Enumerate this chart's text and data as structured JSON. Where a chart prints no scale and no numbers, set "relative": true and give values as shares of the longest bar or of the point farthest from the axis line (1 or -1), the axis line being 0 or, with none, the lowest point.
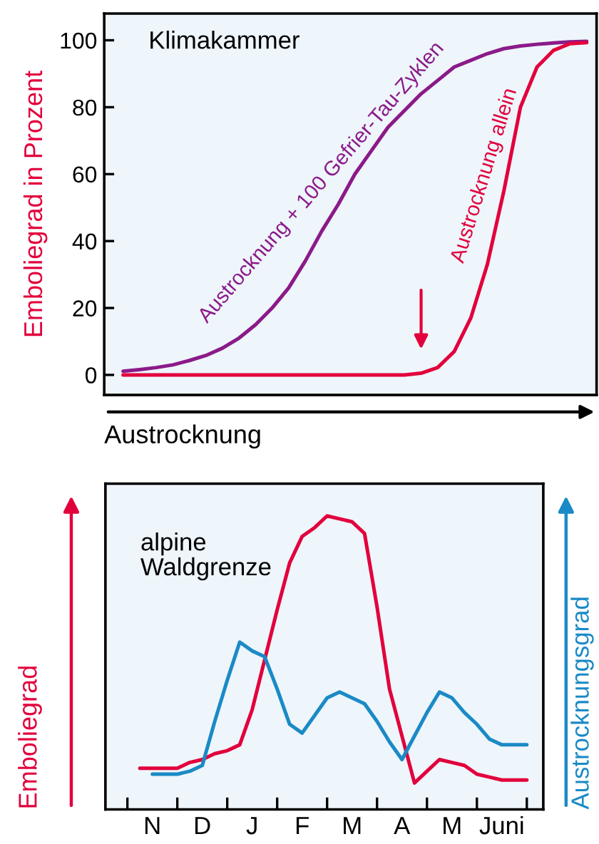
{
  "chart_data": [
    {
      "type": "line",
      "ylabel": "Emboliegrad in Prozent",
      "xlabel": "Austrocknung",
      "annotations": [
        "Klimakammer"
      ],
      "categories": [
        null,
        null,
        null,
        null,
        null,
        null,
        null,
        null,
        null,
        null,
        null,
        null,
        null,
        null,
        null,
        null,
        null,
        null,
        null,
        null,
        null,
        null,
        null,
        null,
        null,
        null,
        null,
        null,
        null
      ],
      "series": [
        {
          "name": "Austrocknung + 100 Gefrier-Tau-Zyklen",
          "color": "#8b1a89",
          "values": [
            1.1,
            1.6,
            2.2,
            3.0,
            4.3,
            5.8,
            8.0,
            11,
            15,
            20,
            26,
            34,
            43,
            51,
            60,
            67,
            74,
            79,
            84,
            88,
            92,
            94,
            96,
            97.5,
            98.3,
            98.8,
            99.2,
            99.5,
            99.7
          ]
        },
        {
          "name": "Austrocknung allein",
          "color": "#e2003c",
          "values": [
            0,
            0,
            0,
            0,
            0,
            0,
            0,
            0,
            0,
            0,
            0,
            0,
            0,
            0,
            0,
            0,
            0,
            0,
            0.5,
            2.2,
            7,
            17,
            33,
            55,
            80,
            92,
            97,
            99,
            99.3
          ]
        }
      ],
      "ylim": [
        -6,
        108
      ],
      "yticks": [
        0,
        20,
        40,
        60,
        80,
        100
      ],
      "tick_labels": "y",
      "legend": false,
      "grid": false
    },
    {
      "type": "line",
      "relative": true,
      "ylabel": "Emboliegrad",
      "y2label": "Austrocknungsgrad",
      "annotations": [
        "alpine\nWaldgrenze"
      ],
      "series": [
        {
          "color": "#e2003c",
          "values": [
            0.14,
            0.14,
            0.14,
            0.14,
            0.16,
            0.17,
            0.19,
            0.2,
            0.22,
            0.34,
            0.51,
            0.68,
            0.84,
            0.93,
            0.96,
            1.0,
            0.99,
            0.98,
            0.94,
            0.69,
            0.41,
            0.25,
            0.09,
            0.13,
            0.17,
            0.16,
            0.15,
            0.12,
            0.11,
            0.1,
            0.1,
            0.1
          ]
        },
        {
          "color": "#1a8ac6",
          "values": [
            null,
            0.12,
            0.12,
            0.12,
            0.13,
            0.15,
            0.3,
            0.44,
            0.57,
            0.54,
            0.52,
            0.41,
            0.29,
            0.26,
            0.32,
            0.38,
            0.4,
            0.38,
            0.36,
            0.3,
            0.23,
            0.17,
            0.25,
            0.33,
            0.4,
            0.38,
            0.33,
            0.29,
            0.24,
            0.22,
            0.22,
            0.22
          ]
        }
      ],
      "categories": [
        null,
        "N",
        null,
        null,
        null,
        "D",
        null,
        null,
        null,
        "J",
        null,
        null,
        null,
        "F",
        null,
        null,
        null,
        "M",
        null,
        null,
        null,
        "A",
        null,
        null,
        null,
        "M",
        null,
        null,
        null,
        "Juni",
        null,
        null
      ],
      "tick_labels": "x",
      "legend": false,
      "grid": false
    }
  ]
}
